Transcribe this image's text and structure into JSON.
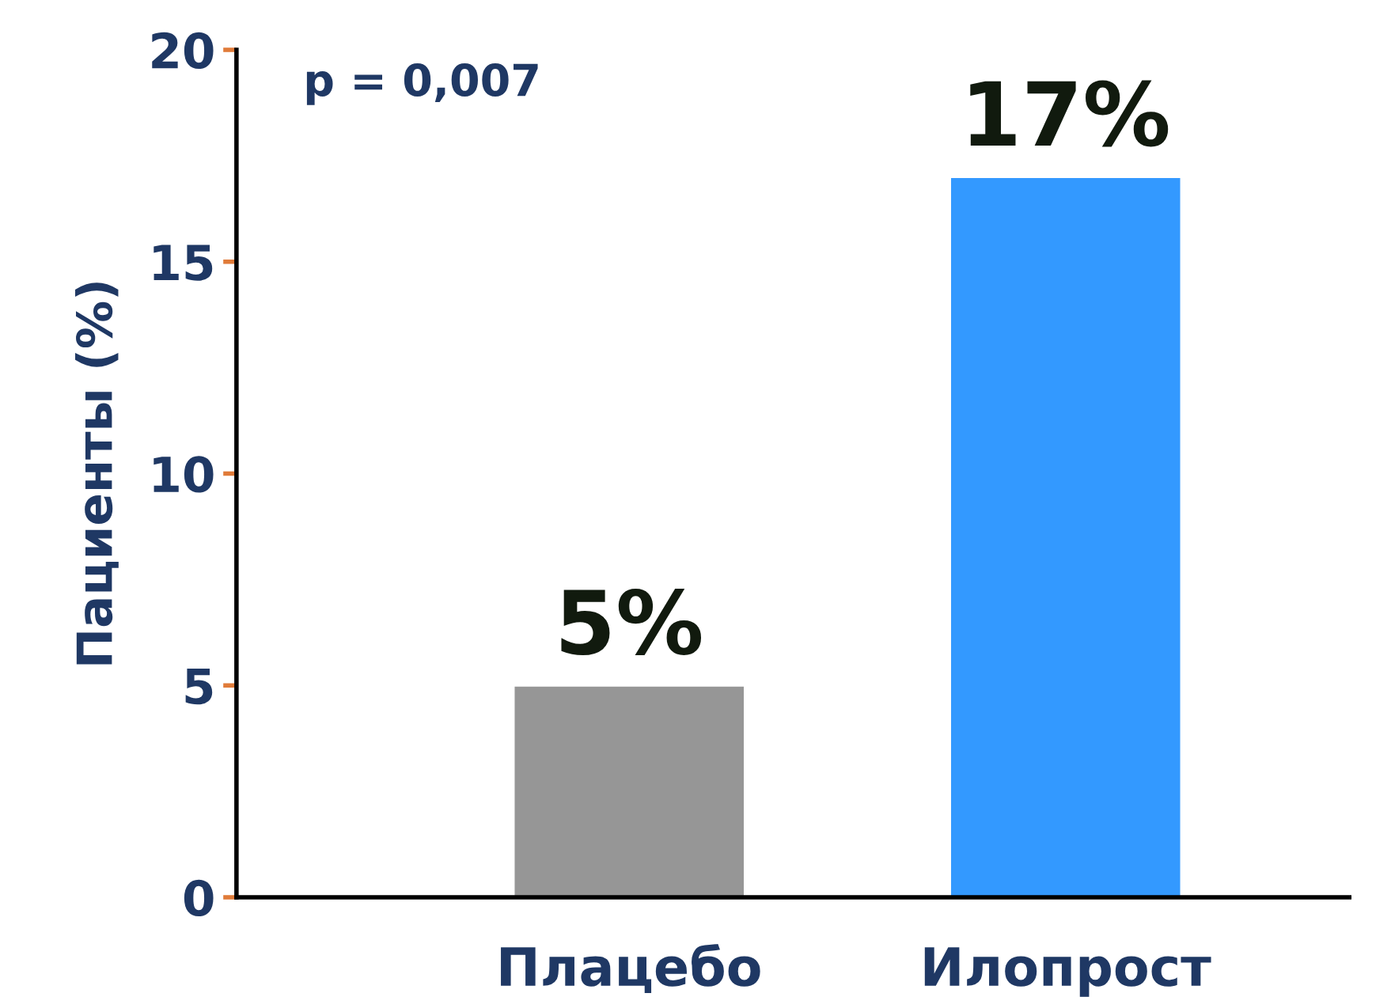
{
  "chart_data": {
    "type": "bar",
    "ylabel": "Пациенты (%)",
    "categories": [
      "Плацебо",
      "Илопрост"
    ],
    "values": [
      5,
      17
    ],
    "colors": [
      "#969696",
      "#3399ff"
    ],
    "value_labels": [
      "5%",
      "17%"
    ],
    "ylim": [
      0,
      20
    ],
    "yticks": [
      0,
      5,
      10,
      15,
      20
    ],
    "grid": false,
    "annotations": [
      "p = 0,007"
    ]
  }
}
